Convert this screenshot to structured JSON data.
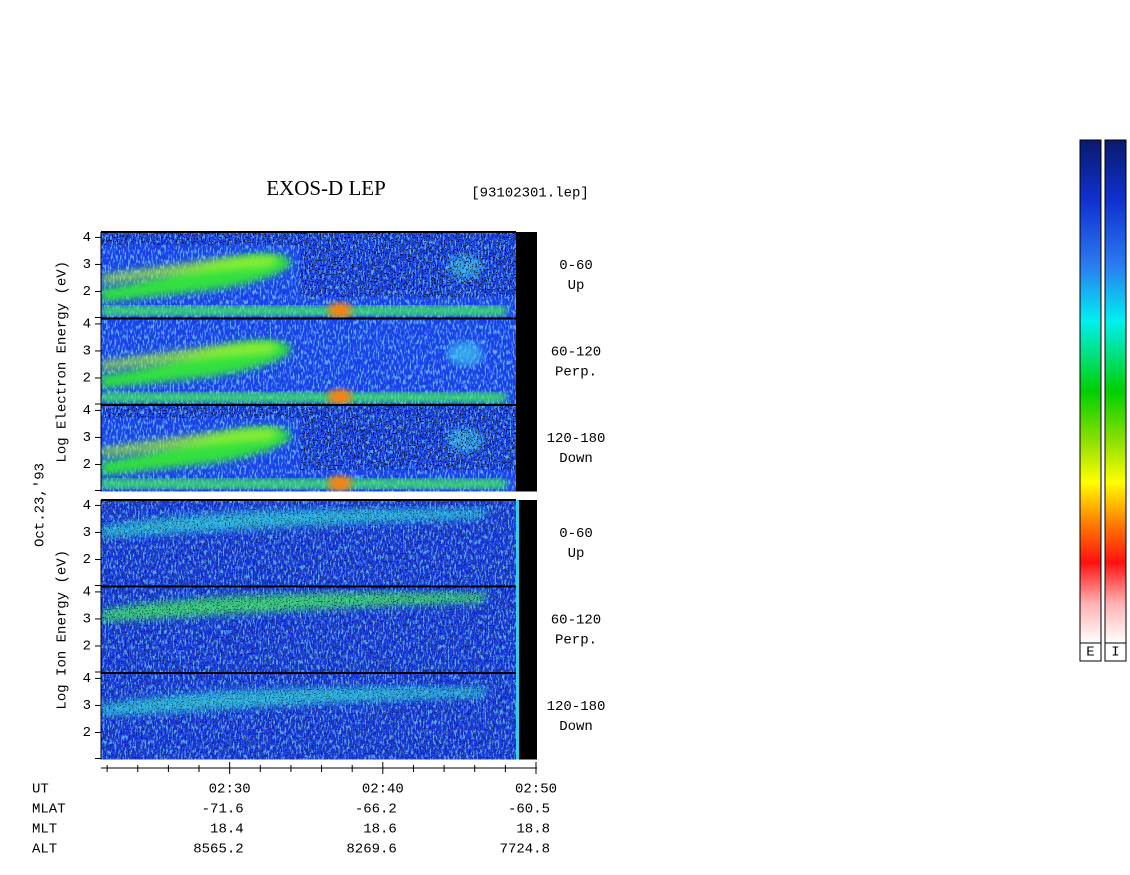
{
  "chart_data": {
    "type": "spectrogram",
    "title": "EXOS-D LEP",
    "subtitle": "[93102301.lep]",
    "date_label": "Oct.23,'93",
    "ylim": [
      1,
      4.2
    ],
    "yticks": [
      2,
      3,
      4
    ],
    "xlim": [
      21.6,
      50
    ],
    "xticks": [
      {
        "value": 30,
        "label": "02:30"
      },
      {
        "value": 40,
        "label": "02:40"
      },
      {
        "value": 50,
        "label": "02:50"
      }
    ],
    "xminorticks": [
      22,
      24,
      26,
      28,
      32,
      34,
      36,
      38,
      42,
      44,
      46,
      48
    ],
    "groups": [
      {
        "ylabel": "Log Electron Energy (eV)",
        "panels": [
          {
            "label": [
              "0-60",
              "Up"
            ]
          },
          {
            "label": [
              "60-120",
              "Perp."
            ]
          },
          {
            "label": [
              "120-180",
              "Down"
            ]
          }
        ]
      },
      {
        "ylabel": "Log Ion Energy (eV)",
        "panels": [
          {
            "label": [
              "0-60",
              "Up"
            ]
          },
          {
            "label": [
              "60-120",
              "Perp."
            ]
          },
          {
            "label": [
              "120-180",
              "Down"
            ]
          }
        ]
      }
    ],
    "orbit": {
      "ut_label": "UT",
      "rows": [
        {
          "name": "MLAT",
          "values": [
            -71.6,
            -66.2,
            -60.5
          ]
        },
        {
          "name": "MLT",
          "values": [
            18.4,
            18.6,
            18.8
          ]
        },
        {
          "name": "ALT",
          "values": [
            8565.2,
            8269.6,
            7724.8
          ]
        }
      ]
    },
    "colorbar_labels": [
      "E",
      "I"
    ]
  }
}
